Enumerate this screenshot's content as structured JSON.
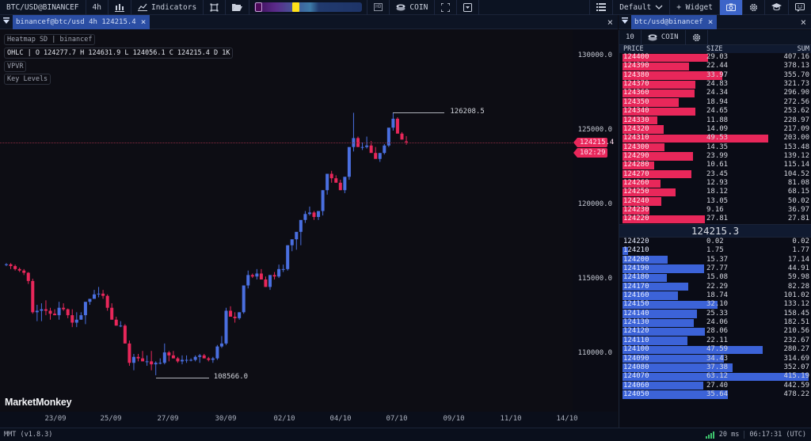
{
  "toolbar": {
    "symbol": "BTC/USD@BINANCEF",
    "timeframe": "4h",
    "indicators_label": "Indicators",
    "hd_label": "HD",
    "coin_label": "COIN",
    "layout_label": "Default",
    "widget_label": "+ Widget"
  },
  "chart_tab": {
    "label": "binancef@btc/usd 4h 124215.4"
  },
  "book_tab": {
    "label": "btc/usd@binancef"
  },
  "legend": {
    "heatmap": "Heatmap SD | binancef",
    "ohlc": "OHLC | O 124277.7 H 124631.9 L 124056.1 C 124215.4 D 1K",
    "vpvr": "VPVR",
    "key_levels": "Key Levels"
  },
  "chart": {
    "y_ticks": [
      "130000.0",
      "125000.0",
      "120000.0",
      "115000.0",
      "110000.0"
    ],
    "y_tick_values": [
      130000,
      125000,
      120000,
      115000,
      110000
    ],
    "x_ticks": [
      "23/09",
      "25/09",
      "27/09",
      "30/09",
      "02/10",
      "04/10",
      "07/10",
      "09/10",
      "11/10",
      "14/10"
    ],
    "x_tick_pos": [
      70,
      140,
      212,
      285,
      359,
      430,
      501,
      573,
      645,
      716
    ],
    "last_price": "124215.4",
    "countdown": "102:29",
    "high_label": "126208.5",
    "low_label": "108566.0",
    "watermark": "MarketMonkey",
    "colors": {
      "up": "#4a6fe0",
      "down": "#e8275a"
    },
    "candles": [
      [
        115980,
        116100,
        115900,
        116020
      ],
      [
        116020,
        116100,
        115700,
        115900
      ],
      [
        115900,
        116000,
        115600,
        115700
      ],
      [
        115700,
        115800,
        115500,
        115600
      ],
      [
        115600,
        115700,
        115300,
        115450
      ],
      [
        115450,
        115500,
        114700,
        114900
      ],
      [
        114900,
        115050,
        112700,
        112800
      ],
      [
        112800,
        113300,
        112200,
        112900
      ],
      [
        112900,
        113400,
        112200,
        113000
      ],
      [
        113000,
        113600,
        112600,
        112900
      ],
      [
        112900,
        113100,
        112300,
        112700
      ],
      [
        112700,
        113000,
        112600,
        112600
      ],
      [
        112600,
        113500,
        112300,
        113100
      ],
      [
        113100,
        113400,
        112900,
        113000
      ],
      [
        113000,
        113050,
        112400,
        112600
      ],
      [
        112600,
        113000,
        111800,
        112100
      ],
      [
        112100,
        112800,
        111800,
        112300
      ],
      [
        112300,
        112800,
        112300,
        112600
      ],
      [
        112600,
        113200,
        112000,
        113500
      ],
      [
        113500,
        113700,
        113300,
        113700
      ],
      [
        113700,
        114300,
        113700,
        114000
      ],
      [
        114000,
        114500,
        113800,
        114050
      ],
      [
        114050,
        114300,
        113700,
        113900
      ],
      [
        113900,
        114000,
        112900,
        113100
      ],
      [
        113100,
        113400,
        112300,
        112300
      ],
      [
        112300,
        112500,
        111900,
        111900
      ],
      [
        111900,
        112200,
        111800,
        111900
      ],
      [
        111900,
        112000,
        110700,
        110700
      ],
      [
        110700,
        110900,
        109200,
        109400
      ],
      [
        109400,
        110000,
        108900,
        109800
      ],
      [
        109800,
        110000,
        109500,
        109700
      ],
      [
        109700,
        110200,
        109500,
        109500
      ],
      [
        109500,
        109900,
        109200,
        109500
      ],
      [
        109500,
        110200,
        108900,
        109300
      ],
      [
        109300,
        109500,
        108566,
        109400
      ],
      [
        109400,
        109700,
        109300,
        109400
      ],
      [
        109400,
        110700,
        109300,
        110100
      ],
      [
        110100,
        110200,
        109500,
        109900
      ],
      [
        109900,
        110200,
        109700,
        109700
      ],
      [
        109700,
        109800,
        109400,
        109500
      ],
      [
        109500,
        109900,
        109300,
        109600
      ],
      [
        109600,
        109900,
        109400,
        109600
      ],
      [
        109600,
        109700,
        109500,
        109600
      ],
      [
        109600,
        109900,
        109500,
        109800
      ],
      [
        109800,
        110000,
        109400,
        109900
      ],
      [
        109900,
        110000,
        109800,
        109700
      ],
      [
        109700,
        109800,
        109500,
        109600
      ],
      [
        109600,
        109800,
        109400,
        109700
      ],
      [
        109700,
        110600,
        109600,
        110500
      ],
      [
        110500,
        111200,
        110400,
        110700
      ],
      [
        110700,
        113100,
        110600,
        112900
      ],
      [
        112900,
        113200,
        112500,
        112500
      ],
      [
        112500,
        112800,
        112100,
        112400
      ],
      [
        112400,
        112800,
        112300,
        112800
      ],
      [
        112800,
        114600,
        112700,
        114600
      ],
      [
        114600,
        115600,
        114400,
        115300
      ],
      [
        115300,
        115400,
        115100,
        115200
      ],
      [
        115200,
        115700,
        115000,
        115400
      ],
      [
        115400,
        115700,
        115000,
        115000
      ],
      [
        115000,
        115200,
        114500,
        114500
      ],
      [
        114500,
        115200,
        114300,
        115300
      ],
      [
        115300,
        115500,
        115000,
        115200
      ],
      [
        115200,
        116000,
        115100,
        115700
      ],
      [
        115700,
        116000,
        115500,
        115700
      ],
      [
        115700,
        117300,
        115600,
        117300
      ],
      [
        117300,
        117400,
        116900,
        117700
      ],
      [
        117700,
        118000,
        117000,
        118200
      ],
      [
        118200,
        118400,
        117300,
        119000
      ],
      [
        119000,
        119600,
        118800,
        119400
      ],
      [
        119400,
        119900,
        119300,
        119500
      ],
      [
        119500,
        119600,
        119000,
        119200
      ],
      [
        119200,
        119500,
        119000,
        119600
      ],
      [
        119600,
        121000,
        119300,
        121000
      ],
      [
        121000,
        121300,
        120700,
        122100
      ],
      [
        122100,
        122300,
        121500,
        121800
      ],
      [
        121800,
        122000,
        121600,
        121500
      ],
      [
        121500,
        121700,
        121000,
        121000
      ],
      [
        121000,
        121200,
        120800,
        121900
      ],
      [
        121900,
        123600,
        121700,
        123900
      ],
      [
        123900,
        126200,
        123600,
        124500
      ],
      [
        124500,
        124600,
        123900,
        123900
      ],
      [
        123900,
        124200,
        123700,
        123900
      ],
      [
        123900,
        124600,
        123800,
        124000
      ],
      [
        124000,
        124300,
        123700,
        123500
      ],
      [
        123500,
        123900,
        123200,
        123100
      ],
      [
        123100,
        123400,
        122900,
        123500
      ],
      [
        123500,
        124100,
        123400,
        124000
      ],
      [
        124000,
        124900,
        123900,
        125200
      ],
      [
        125200,
        126208.5,
        125000,
        125800
      ],
      [
        125800,
        125900,
        124900,
        124800
      ],
      [
        124800,
        124900,
        124400,
        124400
      ],
      [
        124277.7,
        124631.9,
        124056.1,
        124215.4
      ]
    ],
    "candle_x_start": 8,
    "candle_spacing": 5.55,
    "candle_width": 4
  },
  "book": {
    "depth_label": "10",
    "coin_label": "COIN",
    "headers": {
      "price": "PRICE",
      "size": "SIZE",
      "sum": "SUM"
    },
    "mid_price": "124215.3",
    "max_size": 63.12,
    "asks": [
      {
        "price": "124400",
        "size": "29.03",
        "sum": "407.16"
      },
      {
        "price": "124390",
        "size": "22.44",
        "sum": "378.13"
      },
      {
        "price": "124380",
        "size": "33.97",
        "sum": "355.70"
      },
      {
        "price": "124370",
        "size": "24.83",
        "sum": "321.73"
      },
      {
        "price": "124360",
        "size": "24.34",
        "sum": "296.90"
      },
      {
        "price": "124350",
        "size": "18.94",
        "sum": "272.56"
      },
      {
        "price": "124340",
        "size": "24.65",
        "sum": "253.62"
      },
      {
        "price": "124330",
        "size": "11.88",
        "sum": "228.97"
      },
      {
        "price": "124320",
        "size": "14.09",
        "sum": "217.09"
      },
      {
        "price": "124310",
        "size": "49.53",
        "sum": "203.00"
      },
      {
        "price": "124300",
        "size": "14.35",
        "sum": "153.48"
      },
      {
        "price": "124290",
        "size": "23.99",
        "sum": "139.12"
      },
      {
        "price": "124280",
        "size": "10.61",
        "sum": "115.14"
      },
      {
        "price": "124270",
        "size": "23.45",
        "sum": "104.52"
      },
      {
        "price": "124260",
        "size": "12.93",
        "sum": "81.08"
      },
      {
        "price": "124250",
        "size": "18.12",
        "sum": "68.15"
      },
      {
        "price": "124240",
        "size": "13.05",
        "sum": "50.02"
      },
      {
        "price": "124230",
        "size": "9.16",
        "sum": "36.97"
      },
      {
        "price": "124220",
        "size": "27.81",
        "sum": "27.81"
      }
    ],
    "bids": [
      {
        "price": "124220",
        "size": "0.02",
        "sum": "0.02"
      },
      {
        "price": "124210",
        "size": "1.75",
        "sum": "1.77"
      },
      {
        "price": "124200",
        "size": "15.37",
        "sum": "17.14"
      },
      {
        "price": "124190",
        "size": "27.77",
        "sum": "44.91"
      },
      {
        "price": "124180",
        "size": "15.08",
        "sum": "59.98"
      },
      {
        "price": "124170",
        "size": "22.29",
        "sum": "82.28"
      },
      {
        "price": "124160",
        "size": "18.74",
        "sum": "101.02"
      },
      {
        "price": "124150",
        "size": "32.10",
        "sum": "133.12"
      },
      {
        "price": "124140",
        "size": "25.33",
        "sum": "158.45"
      },
      {
        "price": "124130",
        "size": "24.06",
        "sum": "182.51"
      },
      {
        "price": "124120",
        "size": "28.06",
        "sum": "210.56"
      },
      {
        "price": "124110",
        "size": "22.11",
        "sum": "232.67"
      },
      {
        "price": "124100",
        "size": "47.59",
        "sum": "280.27"
      },
      {
        "price": "124090",
        "size": "34.43",
        "sum": "314.69"
      },
      {
        "price": "124080",
        "size": "37.38",
        "sum": "352.07"
      },
      {
        "price": "124070",
        "size": "63.12",
        "sum": "415.19"
      },
      {
        "price": "124060",
        "size": "27.40",
        "sum": "442.59"
      },
      {
        "price": "124050",
        "size": "35.64",
        "sum": "478.22"
      }
    ]
  },
  "status": {
    "version": "MMT (v1.8.3)",
    "latency": "20 ms",
    "clock": "06:17:31 (UTC)"
  }
}
